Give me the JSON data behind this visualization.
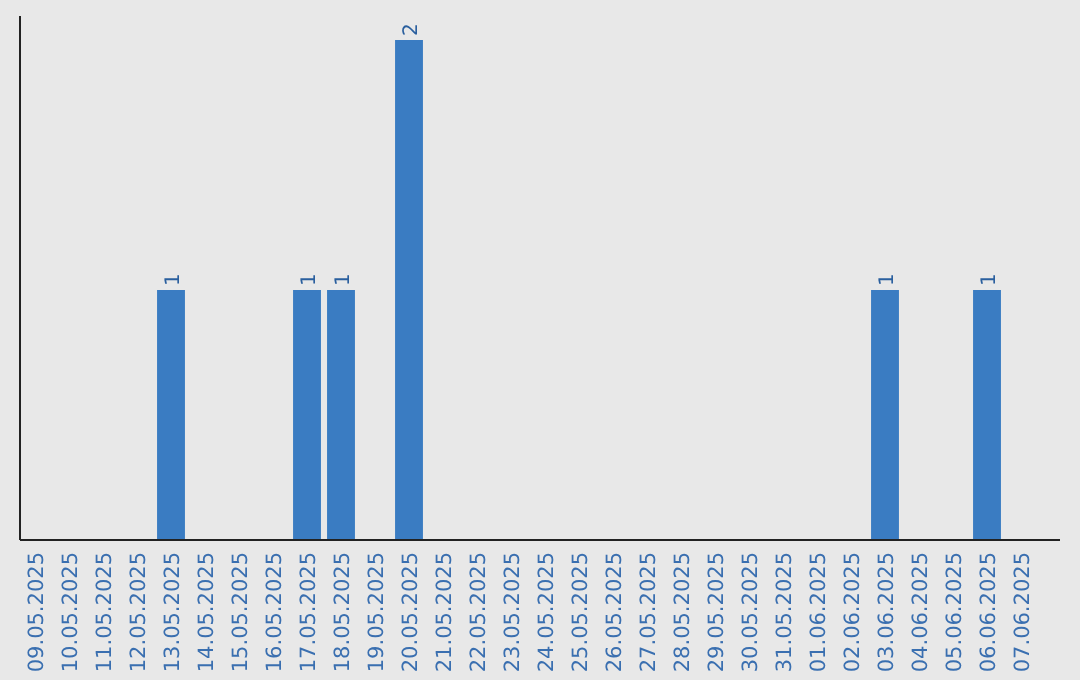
{
  "chart_data": {
    "type": "bar",
    "categories": [
      "09.05.2025",
      "10.05.2025",
      "11.05.2025",
      "12.05.2025",
      "13.05.2025",
      "14.05.2025",
      "15.05.2025",
      "16.05.2025",
      "17.05.2025",
      "18.05.2025",
      "19.05.2025",
      "20.05.2025",
      "21.05.2025",
      "22.05.2025",
      "23.05.2025",
      "24.05.2025",
      "25.05.2025",
      "26.05.2025",
      "27.05.2025",
      "28.05.2025",
      "29.05.2025",
      "30.05.2025",
      "31.05.2025",
      "01.06.2025",
      "02.06.2025",
      "03.06.2025",
      "04.06.2025",
      "05.06.2025",
      "06.06.2025",
      "07.06.2025"
    ],
    "values": [
      0,
      0,
      0,
      0,
      1,
      0,
      0,
      0,
      1,
      1,
      0,
      2,
      0,
      0,
      0,
      0,
      0,
      0,
      0,
      0,
      0,
      0,
      0,
      0,
      0,
      1,
      0,
      0,
      1,
      0
    ],
    "value_labels": [
      null,
      null,
      null,
      null,
      "1",
      null,
      null,
      null,
      "1",
      "1",
      null,
      "2",
      null,
      null,
      null,
      null,
      null,
      null,
      null,
      null,
      null,
      null,
      null,
      null,
      null,
      "1",
      null,
      null,
      "1",
      null
    ],
    "color": "#3a7cc2"
  }
}
